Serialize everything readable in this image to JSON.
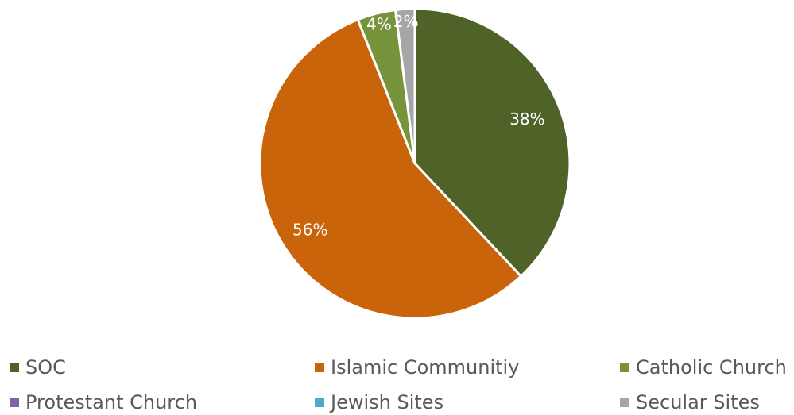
{
  "chart_data": {
    "type": "pie",
    "slices": [
      {
        "label": "SOC",
        "value": 38,
        "display": "38%",
        "color": "#4f6228"
      },
      {
        "label": "Islamic Communitiy",
        "value": 56,
        "display": "56%",
        "color": "#c9640a"
      },
      {
        "label": "Catholic Church",
        "value": 4,
        "display": "4%",
        "color": "#77933c"
      },
      {
        "label": "Protestant Church",
        "value": 0,
        "display": "",
        "color": "#8064a2"
      },
      {
        "label": "Jewish Sites",
        "value": 0,
        "display": "",
        "color": "#4bacc6"
      },
      {
        "label": "Secular Sites",
        "value": 2,
        "display": "2%",
        "color": "#a6a6a6"
      }
    ],
    "legend_position": "bottom"
  }
}
